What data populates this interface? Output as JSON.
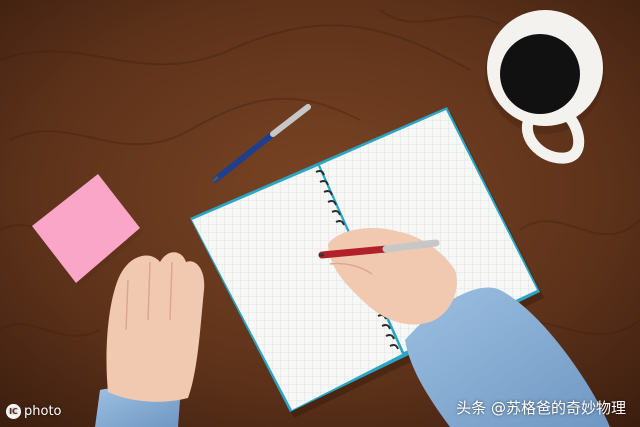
{
  "watermark": {
    "logo_text": "photo",
    "logo_badge": "IC",
    "credit": "头条 @苏格爸的奇妙物理"
  },
  "scene": {
    "subject": "hands writing in a spiral grid notebook",
    "colors": {
      "wood": "#6b3a1f",
      "wood_dark": "#3e1f0e",
      "sticky_note": "#f9a6c8",
      "notebook_page": "#f7f8f6",
      "grid_line": "#c9d3d8",
      "notebook_edge": "#2aa6c4",
      "mug": "#f4f2ee",
      "coffee": "#111111",
      "sleeve": "#8fb4d8",
      "skin": "#f1c9b1",
      "red_pen": "#b2202a",
      "blue_pen": "#1e3f8f",
      "chrome": "#c7c7c7"
    }
  }
}
